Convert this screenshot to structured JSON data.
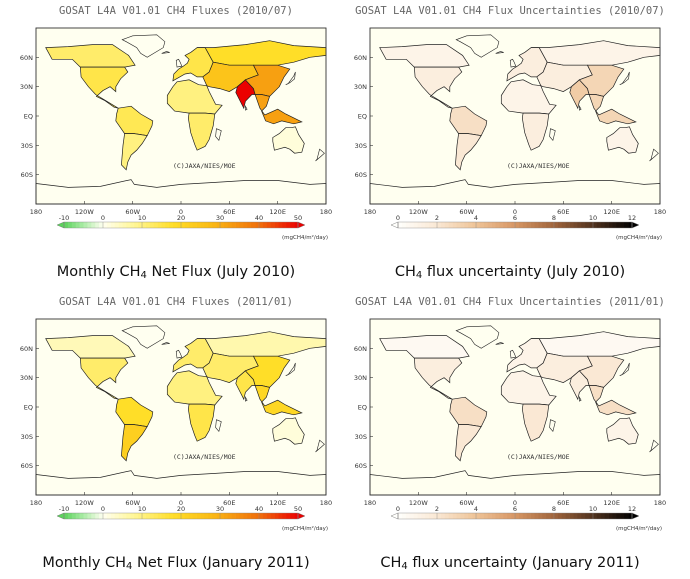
{
  "copyright": "(C)JAXA/NIES/MOE",
  "lat_labels": [
    "60N",
    "30N",
    "EQ",
    "30S",
    "60S"
  ],
  "lon_labels": [
    "180",
    "120W",
    "60W",
    "0",
    "60E",
    "120E",
    "180"
  ],
  "flux_colorbar": {
    "ticks": [
      "-10",
      "0",
      "10",
      "20",
      "30",
      "40",
      "50"
    ],
    "unit": "(mgCH4/m²/day)"
  },
  "unc_colorbar": {
    "ticks": [
      "0",
      "2",
      "4",
      "6",
      "8",
      "10",
      "12"
    ],
    "unit": "(mgCH4/m²/day)"
  },
  "panels": [
    {
      "title": "GOSAT L4A V01.01 CH4 Fluxes (2010/07)",
      "caption_pre": "Monthly CH",
      "caption_sub": "4",
      "caption_post": " Net Flux (July 2010)",
      "kind": "flux",
      "regions": {
        "na_boreal": 12,
        "na_temperate": 15,
        "sa_tropical": 14,
        "sa_temperate": 10,
        "n_africa": 10,
        "s_africa": 12,
        "eurasia_boreal": 18,
        "eurasia_temperate": 25,
        "trop_asia": 32,
        "india": 50,
        "china": 32,
        "australia": 2,
        "europe": 15
      }
    },
    {
      "title": "GOSAT L4A V01.01 CH4 Flux Uncertainties (2010/07)",
      "caption_pre": "CH",
      "caption_sub": "4",
      "caption_post": " flux uncertainty (July 2010)",
      "kind": "unc",
      "regions": {
        "na_boreal": 1,
        "na_temperate": 1.5,
        "sa_tropical": 2.5,
        "sa_temperate": 2,
        "n_africa": 1,
        "s_africa": 1.5,
        "eurasia_boreal": 1,
        "eurasia_temperate": 1.5,
        "trop_asia": 3,
        "india": 3.5,
        "china": 3,
        "australia": 1,
        "europe": 1.5
      }
    },
    {
      "title": "GOSAT L4A V01.01 CH4 Fluxes (2011/01)",
      "caption_pre": "Monthly CH",
      "caption_sub": "4",
      "caption_post": " Net Flux (January 2011)",
      "kind": "flux",
      "regions": {
        "na_boreal": 5,
        "na_temperate": 12,
        "sa_tropical": 18,
        "sa_temperate": 22,
        "n_africa": 10,
        "s_africa": 15,
        "eurasia_boreal": 6,
        "eurasia_temperate": 12,
        "trop_asia": 20,
        "india": 15,
        "china": 18,
        "australia": 2,
        "europe": 12
      }
    },
    {
      "title": "GOSAT L4A V01.01 CH4 Flux Uncertainties (2011/01)",
      "caption_pre": "CH",
      "caption_sub": "4",
      "caption_post": " flux uncertainty (January 2011)",
      "kind": "unc",
      "regions": {
        "na_boreal": 0.5,
        "na_temperate": 1.5,
        "sa_tropical": 2.5,
        "sa_temperate": 2,
        "n_africa": 1,
        "s_africa": 2,
        "eurasia_boreal": 0.5,
        "eurasia_temperate": 1.5,
        "trop_asia": 2.5,
        "india": 1.5,
        "china": 2,
        "australia": 1,
        "europe": 1
      }
    }
  ]
}
